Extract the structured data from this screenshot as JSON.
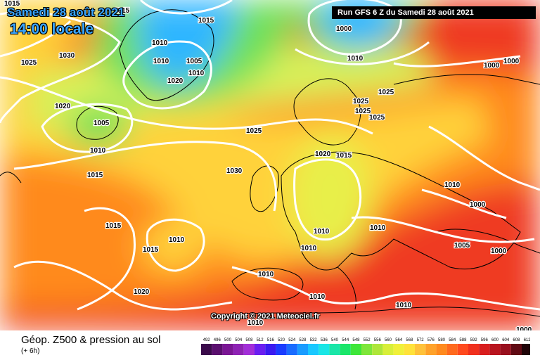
{
  "header": {
    "date_label": "Samedi 28 août 2021",
    "time_label": "14:00 locale",
    "run_label": "Run GFS 6 Z du Samedi 28 août 2021"
  },
  "map": {
    "copyright": "Copyright © 2021 Meteociel.fr",
    "isobar_labels": [
      "1015",
      "1015",
      "1000",
      "1025",
      "1030",
      "1015",
      "1010",
      "1010",
      "1010",
      "1020",
      "1005",
      "1000",
      "1010",
      "1020",
      "1005",
      "1025",
      "1025",
      "1025",
      "1025",
      "1025",
      "1010",
      "1010",
      "1030",
      "1020",
      "1015",
      "1015",
      "1015",
      "1010",
      "1010",
      "1010",
      "1000",
      "1000",
      "1015",
      "1005",
      "1000",
      "1010",
      "1010",
      "1020",
      "1010",
      "1010",
      "1010",
      "1000"
    ],
    "field_colors": {
      "very_low": "#2fb6ff",
      "low": "#6ee05a",
      "mid": "#d8f05a",
      "high": "#ffd23a",
      "higher": "#ff8a1e",
      "highest": "#ef3b22",
      "isobar": "#ffffff",
      "coast": "#000000"
    }
  },
  "footer": {
    "title": "Géop. Z500 & pression au sol",
    "subtitle": "(+ 6h)"
  },
  "legend": {
    "labels": [
      "492",
      "496",
      "500",
      "504",
      "508",
      "512",
      "516",
      "520",
      "524",
      "528",
      "532",
      "536",
      "540",
      "544",
      "548",
      "552",
      "556",
      "560",
      "564",
      "568",
      "572",
      "576",
      "580",
      "584",
      "588",
      "592",
      "596",
      "600",
      "604",
      "608",
      "612"
    ],
    "colors": [
      "#3a0a4a",
      "#5a0f6e",
      "#7a1694",
      "#8e22b4",
      "#a22ed8",
      "#6a1ef0",
      "#3a1af0",
      "#1a3cff",
      "#1a6cff",
      "#1a9cff",
      "#1ac8ff",
      "#1ae6e6",
      "#1ae6a8",
      "#1ae66a",
      "#3ee63a",
      "#7ee63a",
      "#aee63a",
      "#d8ef3a",
      "#f0f03a",
      "#ffe23a",
      "#ffc23a",
      "#ffa22a",
      "#ff8a1e",
      "#ff6a1e",
      "#ff4a1e",
      "#f0301e",
      "#d81e1e",
      "#b8141e",
      "#98101e",
      "#600a14",
      "#200408"
    ]
  }
}
